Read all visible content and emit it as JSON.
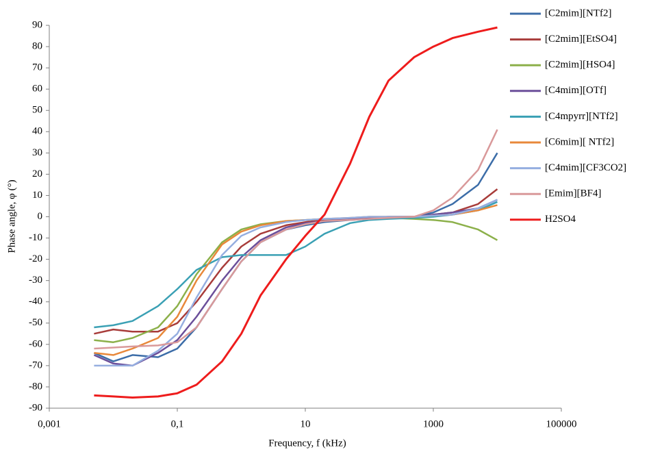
{
  "chart_data": {
    "type": "line",
    "xlabel": "Frequency, f (kHz)",
    "ylabel": "Phase angle, φ (°)",
    "xscale": "log",
    "xlim": [
      0.001,
      100000
    ],
    "xticks": [
      {
        "value": 0.001,
        "label": "0,001"
      },
      {
        "value": 0.1,
        "label": "0,1"
      },
      10,
      1000,
      100000
    ],
    "ylim": [
      -90,
      90
    ],
    "yticks": [
      -90,
      -80,
      -70,
      -60,
      -50,
      -40,
      -30,
      -20,
      -10,
      0,
      10,
      20,
      30,
      40,
      50,
      60,
      70,
      80,
      90
    ],
    "grid": false,
    "legend": "right",
    "x": [
      0.005,
      0.01,
      0.02,
      0.05,
      0.1,
      0.2,
      0.5,
      1,
      2,
      5,
      10,
      20,
      50,
      100,
      200,
      500,
      1000,
      2000,
      5000,
      10000
    ],
    "series": [
      {
        "name": "[C2mim][NTf2]",
        "color": "#3c6da8",
        "values": [
          -64,
          -68,
          -65,
          -66,
          -62,
          -52,
          -34,
          -21,
          -12,
          -6,
          -4,
          -2.5,
          -1.5,
          -1,
          -0.5,
          0,
          2,
          6,
          15,
          30
        ]
      },
      {
        "name": "[C2mim][EtSO4]",
        "color": "#a83c3a",
        "values": [
          -55,
          -53,
          -54,
          -54,
          -50,
          -40,
          -24,
          -14,
          -8,
          -4,
          -2.5,
          -1.5,
          -1,
          -0.5,
          0,
          0,
          1,
          2,
          6,
          13
        ]
      },
      {
        "name": "[C2mim][HSO4]",
        "color": "#8cb04a",
        "values": [
          -58,
          -59,
          -57,
          -52,
          -42,
          -27,
          -12,
          -6,
          -3.5,
          -2,
          -1.5,
          -1,
          -1,
          -0.5,
          -0.5,
          -1,
          -1.5,
          -2.5,
          -6,
          -11
        ]
      },
      {
        "name": "[C4mim][OTf]",
        "color": "#6b4f9a",
        "values": [
          -65,
          -69,
          -70,
          -64,
          -58,
          -47,
          -30,
          -19,
          -11,
          -5,
          -3,
          -2,
          -1,
          -0.5,
          0,
          0,
          1,
          2,
          4,
          8
        ]
      },
      {
        "name": "[C4mpyrr][NTf2]",
        "color": "#3aa0b4",
        "values": [
          -52,
          -51,
          -49,
          -42,
          -34,
          -25,
          -19,
          -18,
          -18,
          -18,
          -14,
          -8,
          -3,
          -1.5,
          -1,
          -0.5,
          0,
          1,
          3,
          7
        ]
      },
      {
        "name": "[C6mim][ NTf2]",
        "color": "#e8883a",
        "values": [
          -64,
          -65,
          -62,
          -57,
          -47,
          -30,
          -13,
          -7,
          -4,
          -2,
          -1.5,
          -1,
          -0.5,
          0,
          0,
          0,
          0.5,
          1,
          3,
          5.5
        ]
      },
      {
        "name": "[C4mim][CF3CO2]",
        "color": "#95aee0",
        "values": [
          -70,
          -70,
          -70,
          -63,
          -55,
          -38,
          -18,
          -9,
          -5,
          -2.5,
          -1.5,
          -1,
          -0.5,
          0,
          0,
          0,
          0.5,
          1,
          4,
          8
        ]
      },
      {
        "name": "[Emim][BF4]",
        "color": "#d9999a",
        "values": [
          -62,
          -61.5,
          -61,
          -60.5,
          -59,
          -52,
          -34,
          -21,
          -12,
          -6,
          -3.5,
          -2,
          -1.5,
          -1,
          -0.5,
          0,
          3,
          9,
          22,
          41
        ]
      },
      {
        "name": "H2SO4",
        "color": "#ee1c1c",
        "values": [
          -84,
          -84.5,
          -85,
          -84.5,
          -83,
          -79,
          -68,
          -55,
          -37,
          -20,
          -9,
          1,
          25,
          47,
          64,
          75,
          80,
          84,
          87,
          89
        ]
      }
    ]
  }
}
